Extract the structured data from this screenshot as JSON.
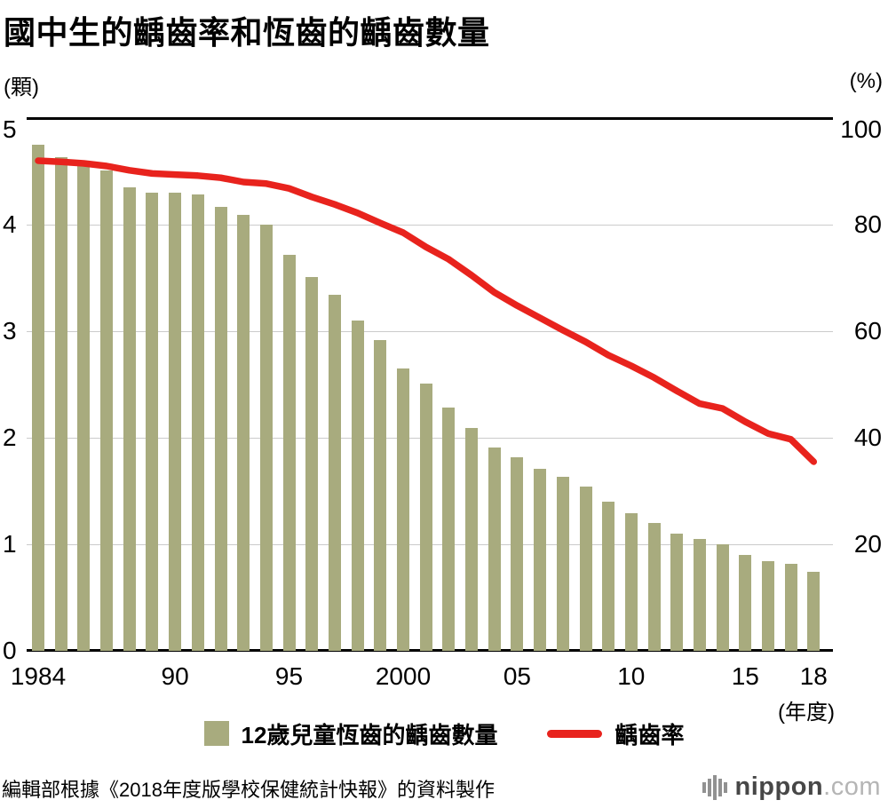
{
  "title": "國中生的齲齒率和恆齒的齲齒數量",
  "left_axis_unit": "(顆)",
  "right_axis_unit": "(%)",
  "x_axis_unit": "(年度)",
  "source": "編輯部根據《2018年度版學校保健統計快報》的資料製作",
  "legend": {
    "bars": "12歲兒童恆齒的齲齒數量",
    "line": "齲齒率"
  },
  "logo": {
    "name": "nippon",
    "suffix": ".com"
  },
  "colors": {
    "bar": "#a8ab7e",
    "line": "#e8231d",
    "grid": "#cbcbcb",
    "axis": "#000000"
  },
  "chart_data": {
    "type": "bar+line",
    "title": "國中生的齲齒率和恆齒的齲齒數量",
    "x": [
      1984,
      1985,
      1986,
      1987,
      1988,
      1989,
      1990,
      1991,
      1992,
      1993,
      1994,
      1995,
      1996,
      1997,
      1998,
      1999,
      2000,
      2001,
      2002,
      2003,
      2004,
      2005,
      2006,
      2007,
      2008,
      2009,
      2010,
      2011,
      2012,
      2013,
      2014,
      2015,
      2016,
      2017,
      2018
    ],
    "series": [
      {
        "name": "12歲兒童恆齒的齲齒數量",
        "type": "bar",
        "axis": "left",
        "unit": "顆",
        "values": [
          4.75,
          4.63,
          4.58,
          4.51,
          4.35,
          4.3,
          4.3,
          4.28,
          4.17,
          4.09,
          4.0,
          3.72,
          3.51,
          3.34,
          3.1,
          2.92,
          2.65,
          2.51,
          2.28,
          2.09,
          1.91,
          1.82,
          1.71,
          1.63,
          1.54,
          1.4,
          1.29,
          1.2,
          1.1,
          1.05,
          1.0,
          0.9,
          0.84,
          0.82,
          0.74
        ]
      },
      {
        "name": "齲齒率",
        "type": "line",
        "axis": "right",
        "unit": "%",
        "values": [
          92.0,
          91.8,
          91.5,
          91.0,
          90.2,
          89.6,
          89.4,
          89.2,
          88.8,
          88.0,
          87.7,
          86.8,
          85.2,
          83.8,
          82.2,
          80.3,
          78.5,
          75.8,
          73.5,
          70.5,
          67.3,
          64.8,
          62.5,
          60.2,
          58.0,
          55.5,
          53.5,
          51.3,
          48.8,
          46.4,
          45.5,
          43.0,
          40.8,
          39.7,
          35.5
        ]
      }
    ],
    "left_axis": {
      "ticks": [
        "5",
        "4",
        "3",
        "2",
        "1",
        "0"
      ],
      "range": [
        0,
        5
      ]
    },
    "right_axis": {
      "ticks": [
        "100",
        "80",
        "60",
        "40",
        "20"
      ],
      "range": [
        0,
        100
      ]
    },
    "x_ticks": [
      {
        "label": "1984",
        "index": 0
      },
      {
        "label": "90",
        "index": 6
      },
      {
        "label": "95",
        "index": 11
      },
      {
        "label": "2000",
        "index": 16
      },
      {
        "label": "05",
        "index": 21
      },
      {
        "label": "10",
        "index": 26
      },
      {
        "label": "15",
        "index": 31
      },
      {
        "label": "18",
        "index": 34
      }
    ],
    "grid": true,
    "legend_position": "bottom"
  }
}
